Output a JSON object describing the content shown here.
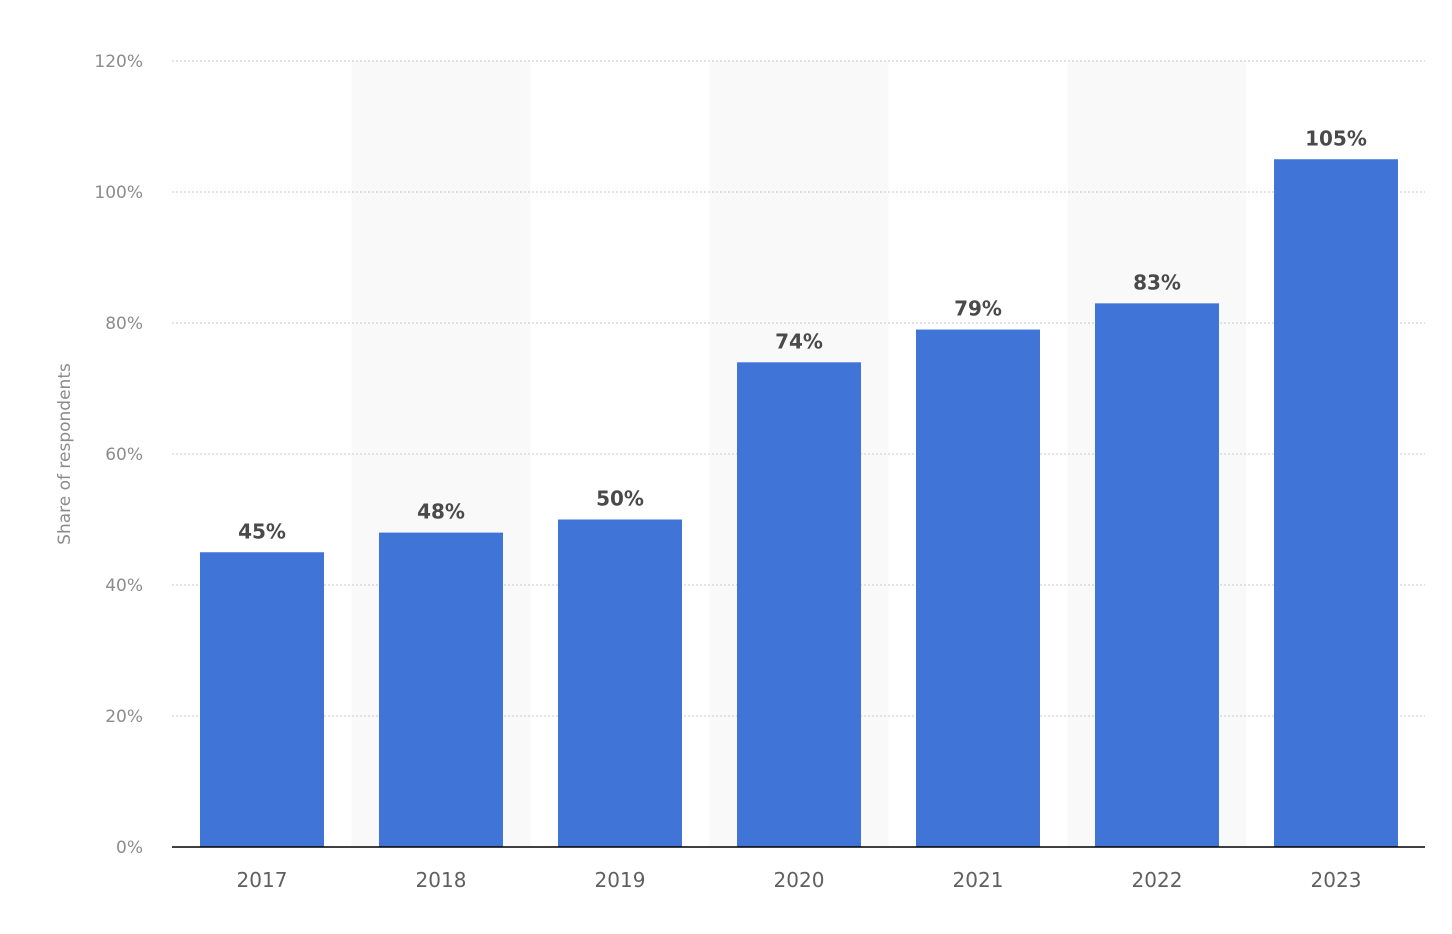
{
  "chart_data": {
    "type": "bar",
    "categories": [
      "2017",
      "2018",
      "2019",
      "2020",
      "2021",
      "2022",
      "2023"
    ],
    "values": [
      45,
      48,
      50,
      74,
      79,
      83,
      105
    ],
    "data_labels": [
      "45%",
      "48%",
      "50%",
      "74%",
      "79%",
      "83%",
      "105%"
    ],
    "title": "",
    "xlabel": "",
    "ylabel": "Share of respondents",
    "ylim": [
      0,
      120
    ],
    "yticks": [
      0,
      20,
      40,
      60,
      80,
      100,
      120
    ],
    "ytick_labels": [
      "0%",
      "20%",
      "40%",
      "60%",
      "80%",
      "100%",
      "120%"
    ],
    "grid": true,
    "alternating_column_bands": true,
    "colors": {
      "bar": "#4074d7",
      "band": "#f9f9f9",
      "grid": "#c8c8c8",
      "axis": "#000000"
    }
  }
}
